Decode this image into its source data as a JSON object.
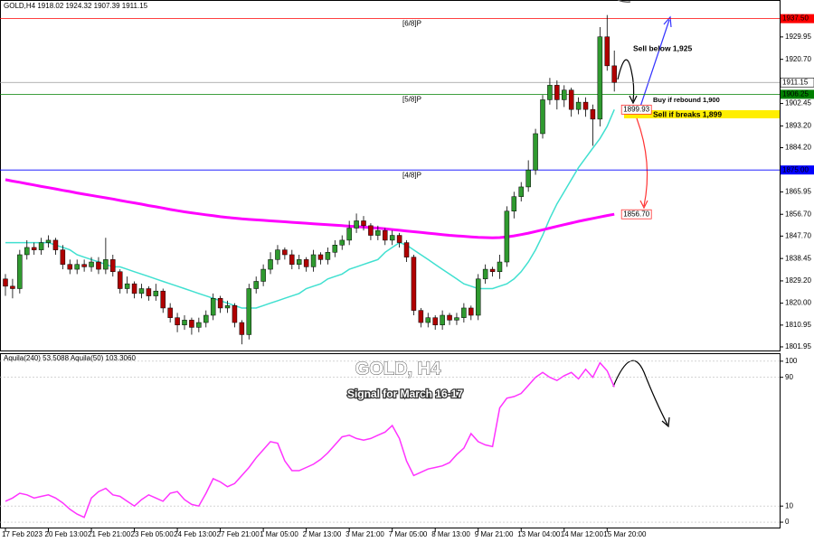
{
  "chart_data": [
    {
      "type": "candlestick",
      "header": "GOLD,H4  1918.02 1924.32 1907.39 1911.15",
      "title": "GOLD, H4",
      "subtitle": "Signal for March 16-17",
      "categories": [
        "17 Feb 2023",
        null,
        null,
        null,
        null,
        null,
        "20 Feb 13:00",
        null,
        null,
        null,
        null,
        null,
        "21 Feb 21:00",
        null,
        null,
        null,
        null,
        null,
        "23 Feb 05:00",
        null,
        null,
        null,
        null,
        null,
        "24 Feb 13:00",
        null,
        null,
        null,
        null,
        null,
        "27 Feb 21:00",
        null,
        null,
        null,
        null,
        null,
        "1 Mar 05:00",
        null,
        null,
        null,
        null,
        null,
        "2 Mar 13:00",
        null,
        null,
        null,
        null,
        null,
        "3 Mar 21:00",
        null,
        null,
        null,
        null,
        null,
        "7 Mar 05:00",
        null,
        null,
        null,
        null,
        null,
        "8 Mar 13:00",
        null,
        null,
        null,
        null,
        null,
        "9 Mar 21:00",
        null,
        null,
        null,
        null,
        null,
        "13 Mar 04:00",
        null,
        null,
        null,
        null,
        null,
        "14 Mar 12:00",
        null,
        null,
        null,
        null,
        null,
        "15 Mar 20:00",
        null
      ],
      "open": [
        1830,
        1827,
        1826,
        1840,
        1843,
        1842,
        1845,
        1846,
        1842,
        1836,
        1834,
        1836,
        1835,
        1837,
        1834,
        1838,
        1833,
        1826,
        1828,
        1824,
        1826,
        1823,
        1825,
        1818,
        1814,
        1811,
        1813,
        1810,
        1812,
        1815,
        1822,
        1818,
        1819,
        1812,
        1807,
        1826,
        1829,
        1834,
        1838,
        1842,
        1840,
        1836,
        1838,
        1835,
        1840,
        1838,
        1841,
        1844,
        1846,
        1851,
        1854,
        1852,
        1848,
        1850,
        1846,
        1848,
        1845,
        1839,
        1817,
        1812,
        1814,
        1811,
        1815,
        1813,
        1814,
        1818,
        1815,
        1830,
        1834,
        1833,
        1837,
        1858,
        1864,
        1868,
        1875,
        1890,
        1904,
        1910,
        1904,
        1908,
        1900,
        1903,
        1900,
        1896,
        1930,
        1918.02
      ],
      "high": [
        1832,
        1830,
        1842,
        1846,
        1845,
        1847,
        1848,
        1847,
        1844,
        1838,
        1838,
        1838,
        1839,
        1839,
        1847,
        1840,
        1834,
        1831,
        1829,
        1828,
        1827,
        1828,
        1826,
        1820,
        1816,
        1815,
        1814,
        1814,
        1817,
        1824,
        1823,
        1821,
        1820,
        1813,
        1828,
        1831,
        1836,
        1841,
        1844,
        1843,
        1842,
        1840,
        1839,
        1842,
        1841,
        1843,
        1846,
        1848,
        1854,
        1857,
        1856,
        1853,
        1852,
        1851,
        1850,
        1849,
        1846,
        1840,
        1818,
        1816,
        1815,
        1817,
        1816,
        1816,
        1820,
        1819,
        1832,
        1836,
        1835,
        1840,
        1860,
        1866,
        1870,
        1879,
        1892,
        1906,
        1913,
        1912,
        1910,
        1909,
        1905,
        1905,
        1902,
        1934,
        1939,
        1924.32
      ],
      "low": [
        1823,
        1822,
        1824,
        1838,
        1840,
        1840,
        1843,
        1840,
        1834,
        1832,
        1832,
        1833,
        1833,
        1832,
        1832,
        1831,
        1824,
        1824,
        1822,
        1822,
        1821,
        1821,
        1816,
        1812,
        1808,
        1809,
        1807,
        1808,
        1810,
        1813,
        1816,
        1816,
        1810,
        1803,
        1805,
        1824,
        1827,
        1832,
        1836,
        1838,
        1834,
        1834,
        1833,
        1833,
        1836,
        1836,
        1839,
        1842,
        1844,
        1849,
        1850,
        1846,
        1846,
        1844,
        1844,
        1843,
        1837,
        1815,
        1810,
        1810,
        1809,
        1809,
        1811,
        1811,
        1812,
        1813,
        1813,
        1828,
        1831,
        1830,
        1835,
        1855,
        1862,
        1866,
        1873,
        1888,
        1902,
        1900,
        1901,
        1897,
        1898,
        1897,
        1885,
        1893,
        1916,
        1907.39
      ],
      "close": [
        1827,
        1826,
        1840,
        1843,
        1842,
        1845,
        1846,
        1842,
        1836,
        1834,
        1836,
        1835,
        1837,
        1834,
        1838,
        1833,
        1826,
        1828,
        1824,
        1826,
        1823,
        1825,
        1818,
        1814,
        1811,
        1813,
        1810,
        1812,
        1815,
        1822,
        1818,
        1819,
        1812,
        1807,
        1826,
        1829,
        1834,
        1838,
        1842,
        1840,
        1836,
        1838,
        1835,
        1840,
        1838,
        1841,
        1844,
        1846,
        1851,
        1854,
        1852,
        1848,
        1850,
        1846,
        1848,
        1845,
        1839,
        1817,
        1812,
        1814,
        1811,
        1815,
        1813,
        1814,
        1818,
        1815,
        1830,
        1834,
        1833,
        1837,
        1858,
        1864,
        1868,
        1875,
        1890,
        1904,
        1910,
        1904,
        1908,
        1900,
        1903,
        1900,
        1896,
        1930,
        1918.02,
        1911.15
      ],
      "up_color": "#2f9a2f",
      "down_color": "#b00000",
      "series": [
        {
          "color": "#40e0d0",
          "end_label": "1899.93",
          "values": [
            1845,
            1845,
            1845,
            1845,
            1845,
            1845,
            1845,
            1844,
            1843,
            1842,
            1840,
            1839,
            1838,
            1837,
            1836,
            1835,
            1835,
            1834,
            1833,
            1832,
            1831,
            1830,
            1829,
            1828,
            1827,
            1826,
            1825,
            1824,
            1823,
            1822,
            1821,
            1820,
            1819,
            1818,
            1818,
            1818,
            1819,
            1820,
            1821,
            1822,
            1823,
            1824,
            1826,
            1827,
            1828,
            1830,
            1831,
            1832,
            1834,
            1835,
            1836,
            1837,
            1838,
            1841,
            1843,
            1845,
            1844,
            1842,
            1840,
            1838,
            1836,
            1834,
            1832,
            1830,
            1828,
            1827,
            1826,
            1826,
            1826,
            1827,
            1828,
            1830,
            1833,
            1837,
            1842,
            1848,
            1855,
            1861,
            1866,
            1871,
            1876,
            1880,
            1884,
            1888,
            1893,
            1899.93
          ]
        },
        {
          "color": "#ff00ff",
          "end_label": "1856.70",
          "values": [
            1871,
            1870.4,
            1869.9,
            1869.3,
            1868.8,
            1868.2,
            1867.7,
            1867.2,
            1866.6,
            1866.1,
            1865.5,
            1865,
            1864.5,
            1864,
            1863.5,
            1863,
            1862.4,
            1861.9,
            1861.4,
            1860.9,
            1860.3,
            1859.8,
            1859.3,
            1858.7,
            1858.2,
            1857.7,
            1857.3,
            1856.9,
            1856.5,
            1856.1,
            1855.7,
            1855.4,
            1855.1,
            1854.8,
            1854.6,
            1854.4,
            1854.2,
            1854,
            1853.8,
            1853.6,
            1853.4,
            1853.2,
            1853,
            1852.8,
            1852.6,
            1852.4,
            1852.2,
            1852,
            1851.8,
            1851.6,
            1851.4,
            1851.2,
            1851,
            1850.7,
            1850.4,
            1850.1,
            1849.8,
            1849.5,
            1849.2,
            1848.9,
            1848.6,
            1848.3,
            1848,
            1847.8,
            1847.6,
            1847.4,
            1847.2,
            1847.1,
            1847,
            1847.1,
            1847.4,
            1847.8,
            1848.3,
            1848.9,
            1849.6,
            1850.3,
            1851,
            1851.7,
            1852.4,
            1853.1,
            1853.8,
            1854.4,
            1855,
            1855.6,
            1856.2,
            1856.7
          ]
        }
      ],
      "ylim": [
        1800.45,
        1945.2
      ],
      "yticks": [
        1801.95,
        1810.95,
        {
          "value": 1820,
          "label": "1820.00"
        },
        {
          "value": 1829.2,
          "label": "1829.20"
        },
        1838.45,
        {
          "value": 1847.7,
          "label": "1847.70"
        },
        {
          "value": 1856.7,
          "label": "1856.70"
        },
        1865.95,
        {
          "value": 1884.2,
          "label": "1884.20"
        },
        {
          "value": 1893.2,
          "label": "1893.20"
        },
        1902.45,
        {
          "value": 1920.7,
          "label": "1920.70"
        },
        1929.95
      ],
      "last_price": 1911.15,
      "levels": [
        {
          "label": "[6/8]P",
          "value": 1937.5,
          "value_label": "1937.50",
          "color": "#ff0000"
        },
        {
          "label": "[5/8]P",
          "value": 1906.25,
          "value_label": "1906.25",
          "color": "#008000"
        },
        {
          "label": "[4/8]P",
          "value": 1875,
          "value_label": "1875.00",
          "color": "#0000ff"
        }
      ],
      "annotations": [
        {
          "text": "Sell below 1,925",
          "color": "#000000"
        },
        {
          "text": "Buy if rebound 1,900",
          "color": "#3333cc"
        },
        {
          "text": "Sell if breaks 1,899",
          "color": "#000000"
        }
      ]
    },
    {
      "type": "line",
      "label": "Aquila(240) 53.5088  Aquila(50) 103.3060",
      "series": [
        {
          "color": "#ff33ff",
          "values": [
            13,
            15,
            18,
            17,
            15,
            16,
            17,
            15,
            12,
            8,
            5,
            3,
            15,
            19,
            21,
            17,
            16,
            13,
            10,
            14,
            17,
            15,
            13,
            18,
            19,
            14,
            11,
            10,
            18,
            27,
            25,
            22,
            24,
            29,
            34,
            40,
            45,
            50,
            49,
            38,
            32,
            32,
            34,
            36,
            39,
            43,
            48,
            53,
            54,
            52,
            51,
            52,
            54,
            56,
            60,
            52,
            38,
            29,
            31,
            33,
            34,
            35,
            37,
            42,
            46,
            55,
            50,
            48,
            47,
            71,
            77,
            78,
            80,
            85,
            90,
            93,
            90,
            88,
            91,
            93,
            89,
            95,
            90,
            99,
            94,
            84
          ]
        }
      ],
      "ylim": [
        -3.9,
        104.4
      ],
      "yticks": [
        0,
        10,
        90,
        100
      ]
    }
  ]
}
